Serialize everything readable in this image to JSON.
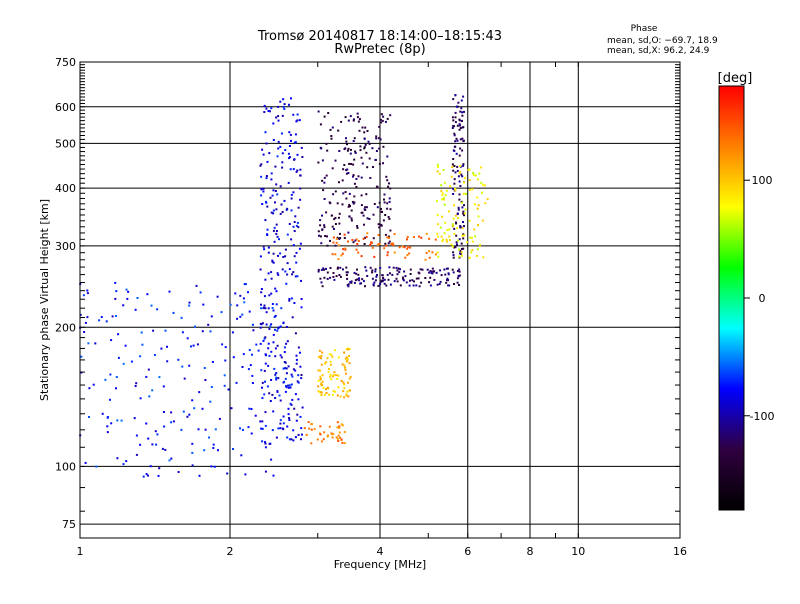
{
  "chart_data": {
    "type": "scatter",
    "title": "Tromsø 20140817 18:14:00–18:15:43",
    "subtitle": "RwPretec (8p)",
    "xlabel": "Frequency [MHz]",
    "ylabel": "Stationary phase Virtual Height [km]",
    "xscale": "log",
    "yscale": "log",
    "xlim": [
      1,
      16
    ],
    "ylim": [
      70,
      750
    ],
    "x_ticks": [
      1,
      2,
      4,
      6,
      8,
      10,
      16
    ],
    "y_ticks": [
      75,
      100,
      200,
      300,
      400,
      500,
      600,
      750
    ],
    "grid": true,
    "stats_header": "Phase",
    "stats_lines": [
      "mean, sd,O: −69.7, 18.9",
      "mean, sd,X:  96.2, 24.9"
    ],
    "colorbar": {
      "label": "[deg]",
      "range": [
        -180,
        180
      ],
      "ticks": [
        100,
        0,
        -100
      ],
      "colors": [
        "#ff0000",
        "#ff8000",
        "#ffff00",
        "#00ff00",
        "#00ffff",
        "#0000ff",
        "#300040",
        "#000000"
      ]
    },
    "point_clusters": [
      {
        "fmin": 1.0,
        "fmax": 2.5,
        "hmin": 95,
        "hmax": 250,
        "phase": -75,
        "n": 220
      },
      {
        "fmin": 2.3,
        "fmax": 2.8,
        "hmin": 110,
        "hmax": 630,
        "phase": -85,
        "n": 320
      },
      {
        "fmin": 3.0,
        "fmax": 4.2,
        "hmin": 300,
        "hmax": 590,
        "phase": -130,
        "n": 220
      },
      {
        "fmin": 3.0,
        "fmax": 5.8,
        "hmin": 245,
        "hmax": 270,
        "phase": -120,
        "n": 160
      },
      {
        "fmin": 5.6,
        "fmax": 5.9,
        "hmin": 280,
        "hmax": 640,
        "phase": -120,
        "n": 110
      },
      {
        "fmin": 3.2,
        "fmax": 5.2,
        "hmin": 280,
        "hmax": 320,
        "phase": 140,
        "n": 70
      },
      {
        "fmin": 5.2,
        "fmax": 6.6,
        "hmin": 280,
        "hmax": 450,
        "phase": 80,
        "n": 110
      },
      {
        "fmin": 3.0,
        "fmax": 3.5,
        "hmin": 140,
        "hmax": 180,
        "phase": 100,
        "n": 90
      },
      {
        "fmin": 2.8,
        "fmax": 3.4,
        "hmin": 112,
        "hmax": 125,
        "phase": 130,
        "n": 40
      }
    ]
  }
}
